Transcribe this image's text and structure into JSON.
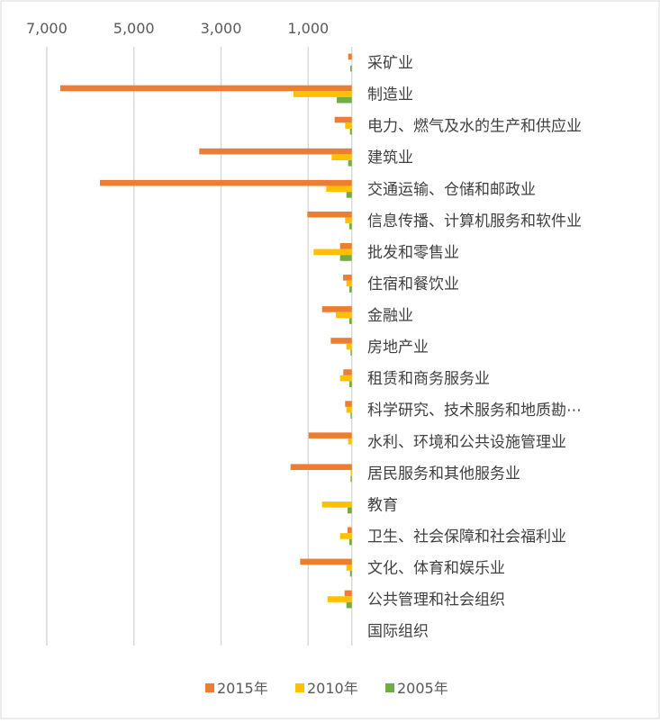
{
  "chart_data": {
    "type": "bar",
    "orientation": "horizontal",
    "x_reversed": true,
    "xlim": [
      0,
      7000
    ],
    "x_ticks": [
      7000,
      5000,
      3000,
      1000
    ],
    "x_tick_labels": [
      "7,000",
      "5,000",
      "3,000",
      "1,000"
    ],
    "grid": true,
    "legend_position": "bottom",
    "categories": [
      "采矿业",
      "制造业",
      "电力、燃气及水的生产和供应业",
      "建筑业",
      "交通运输、仓储和邮政业",
      "信息传播、计算机服务和软件业",
      "批发和零售业",
      "住宿和餐饮业",
      "金融业",
      "房地产业",
      "租赁和商务服务业",
      "科学研究、技术服务和地质勘⋯",
      "水利、环境和公共设施管理业",
      "居民服务和其他服务业",
      "教育",
      "卫生、社会保障和社会福利业",
      "文化、体育和娱乐业",
      "公共管理和社会组织",
      "国际组织"
    ],
    "series": [
      {
        "name": "2015年",
        "color": "#ED7D31",
        "values": [
          83,
          6690,
          393,
          3500,
          5780,
          1020,
          269,
          200,
          682,
          483,
          194,
          153,
          992,
          1405,
          0,
          97,
          1186,
          166,
          0
        ]
      },
      {
        "name": "2010年",
        "color": "#FFC000",
        "values": [
          0,
          1340,
          153,
          462,
          587,
          153,
          876,
          124,
          366,
          124,
          269,
          124,
          83,
          28,
          682,
          269,
          124,
          558,
          0
        ]
      },
      {
        "name": "2005年",
        "color": "#70AD47",
        "values": [
          35,
          345,
          41,
          83,
          124,
          56,
          269,
          56,
          56,
          28,
          56,
          28,
          0,
          28,
          97,
          56,
          41,
          124,
          0
        ]
      }
    ]
  }
}
